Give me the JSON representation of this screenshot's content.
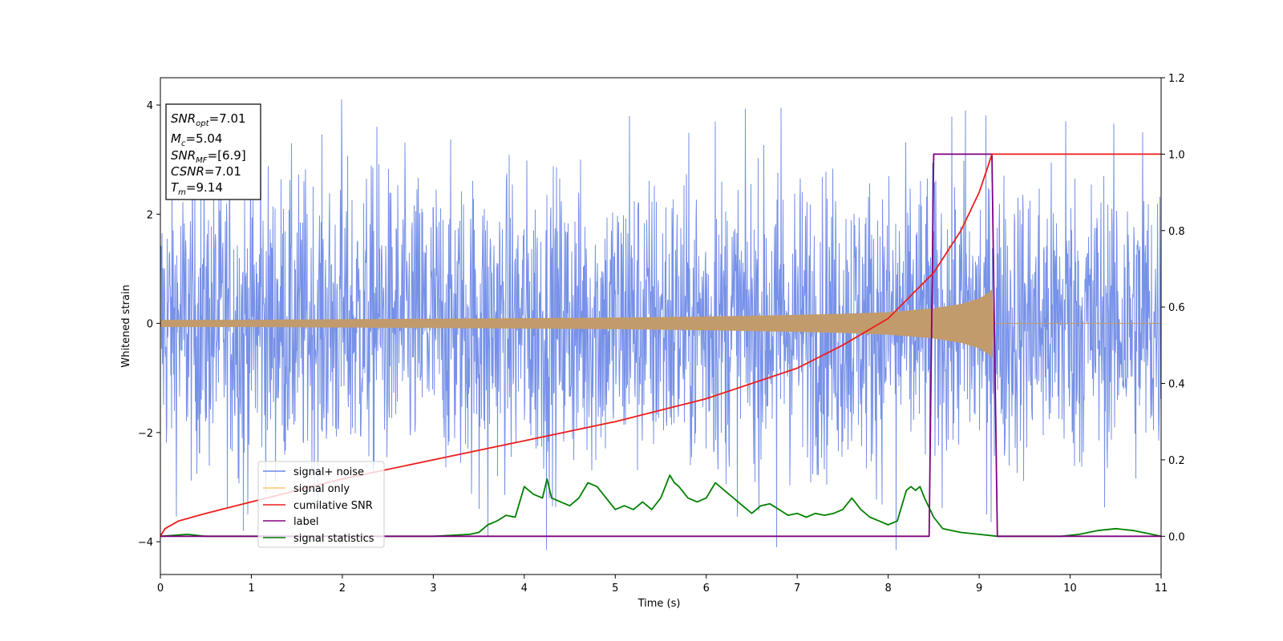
{
  "chart_data": {
    "type": "line",
    "title": "",
    "xlabel": "Time (s)",
    "ylabel": "Whitened strain",
    "xlim": [
      0,
      11
    ],
    "ylim": [
      -4.6,
      4.5
    ],
    "y2lim": [
      -0.1,
      1.2
    ],
    "xticks": [
      "0",
      "1",
      "2",
      "3",
      "4",
      "5",
      "6",
      "7",
      "8",
      "9",
      "10",
      "11"
    ],
    "yticks": [
      "−4",
      "−2",
      "0",
      "2",
      "4"
    ],
    "y2ticks": [
      "0.0",
      "0.2",
      "0.4",
      "0.6",
      "0.8",
      "1.0",
      "1.2"
    ],
    "grid": false,
    "legend_position": "lower-left",
    "annotation_box": {
      "position": "top-left",
      "lines": [
        {
          "base": "SNR",
          "sub": "opt",
          "value": "=7.01"
        },
        {
          "base": "M",
          "sub": "c",
          "value": "=5.04"
        },
        {
          "base": "SNR",
          "sub": "MF",
          "value": "=[6.9]"
        },
        {
          "base": "CSNR",
          "sub": "",
          "value": "=7.01"
        },
        {
          "base": "T",
          "sub": "m",
          "value": "=9.14"
        }
      ]
    },
    "series": [
      {
        "name": "signal+ noise",
        "axis": "left",
        "color": "#6b88e6",
        "style": "noise band",
        "amplitude_typical": 2.2,
        "notable_spikes": [
          {
            "x": 0.91,
            "y": -3.8
          },
          {
            "x": 1.1,
            "y": 3.7
          },
          {
            "x": 1.99,
            "y": 4.1
          },
          {
            "x": 2.38,
            "y": 3.6
          },
          {
            "x": 3.5,
            "y": -3.4
          },
          {
            "x": 3.6,
            "y": -3.9
          },
          {
            "x": 4.24,
            "y": -4.15
          },
          {
            "x": 5.16,
            "y": 3.8
          },
          {
            "x": 6.1,
            "y": 3.7
          },
          {
            "x": 6.77,
            "y": -4.1
          },
          {
            "x": 6.82,
            "y": 3.95
          },
          {
            "x": 8.08,
            "y": -4.15
          },
          {
            "x": 8.85,
            "y": 3.9
          },
          {
            "x": 9.08,
            "y": -3.5
          },
          {
            "x": 9.95,
            "y": 3.7
          },
          {
            "x": 10.8,
            "y": 3.5
          }
        ]
      },
      {
        "name": "signal only",
        "axis": "left",
        "color": "#c29b6c",
        "legend_color": "#ffc870",
        "style": "chirp",
        "x": [
          0,
          1,
          2,
          3,
          4,
          5,
          6,
          7,
          7.5,
          8,
          8.5,
          8.8,
          9.0,
          9.1,
          9.14,
          9.16,
          11
        ],
        "envelope": [
          0.06,
          0.06,
          0.07,
          0.08,
          0.09,
          0.1,
          0.12,
          0.15,
          0.17,
          0.2,
          0.27,
          0.35,
          0.45,
          0.55,
          0.62,
          0.0,
          0.0
        ]
      },
      {
        "name": "cumilative SNR",
        "axis": "right",
        "color": "#ee1c1c",
        "x": [
          0,
          0.05,
          0.2,
          0.5,
          1,
          2,
          3,
          4,
          5,
          6,
          7,
          7.5,
          8,
          8.5,
          8.8,
          9.0,
          9.1,
          9.14,
          11
        ],
        "y": [
          0.0,
          0.02,
          0.04,
          0.06,
          0.09,
          0.15,
          0.2,
          0.25,
          0.3,
          0.36,
          0.44,
          0.5,
          0.57,
          0.69,
          0.8,
          0.9,
          0.97,
          1.0,
          1.0
        ]
      },
      {
        "name": "label",
        "axis": "right",
        "color": "#800080",
        "x": [
          0,
          8.45,
          8.5,
          9.14,
          9.2,
          11
        ],
        "y": [
          0,
          0,
          1,
          1,
          0,
          0
        ]
      },
      {
        "name": "signal statistics",
        "axis": "right",
        "color": "#008000",
        "x": [
          0,
          0.3,
          0.5,
          1,
          2,
          3,
          3.4,
          3.5,
          3.6,
          3.7,
          3.8,
          3.9,
          4.0,
          4.1,
          4.2,
          4.25,
          4.3,
          4.4,
          4.5,
          4.6,
          4.7,
          4.8,
          4.9,
          5.0,
          5.1,
          5.2,
          5.3,
          5.4,
          5.5,
          5.6,
          5.65,
          5.7,
          5.8,
          5.9,
          6.0,
          6.1,
          6.2,
          6.3,
          6.4,
          6.5,
          6.6,
          6.7,
          6.8,
          6.9,
          7.0,
          7.1,
          7.2,
          7.3,
          7.4,
          7.5,
          7.6,
          7.7,
          7.8,
          7.9,
          8.0,
          8.1,
          8.2,
          8.25,
          8.3,
          8.35,
          8.4,
          8.5,
          8.6,
          8.8,
          9.0,
          9.2,
          9.5,
          9.9,
          10.1,
          10.3,
          10.5,
          10.7,
          10.9,
          11
        ],
        "y": [
          0.0,
          0.005,
          0.0,
          0.0,
          0.0,
          0.0,
          0.005,
          0.01,
          0.03,
          0.04,
          0.055,
          0.05,
          0.13,
          0.11,
          0.1,
          0.15,
          0.1,
          0.09,
          0.08,
          0.1,
          0.14,
          0.13,
          0.1,
          0.07,
          0.08,
          0.07,
          0.09,
          0.07,
          0.1,
          0.16,
          0.14,
          0.13,
          0.1,
          0.09,
          0.1,
          0.14,
          0.12,
          0.1,
          0.08,
          0.06,
          0.08,
          0.085,
          0.07,
          0.055,
          0.06,
          0.05,
          0.06,
          0.055,
          0.06,
          0.07,
          0.1,
          0.07,
          0.05,
          0.04,
          0.03,
          0.04,
          0.12,
          0.13,
          0.12,
          0.13,
          0.1,
          0.05,
          0.02,
          0.01,
          0.005,
          0.0,
          0.0,
          0.0,
          0.005,
          0.015,
          0.02,
          0.015,
          0.005,
          0.0
        ]
      }
    ]
  }
}
